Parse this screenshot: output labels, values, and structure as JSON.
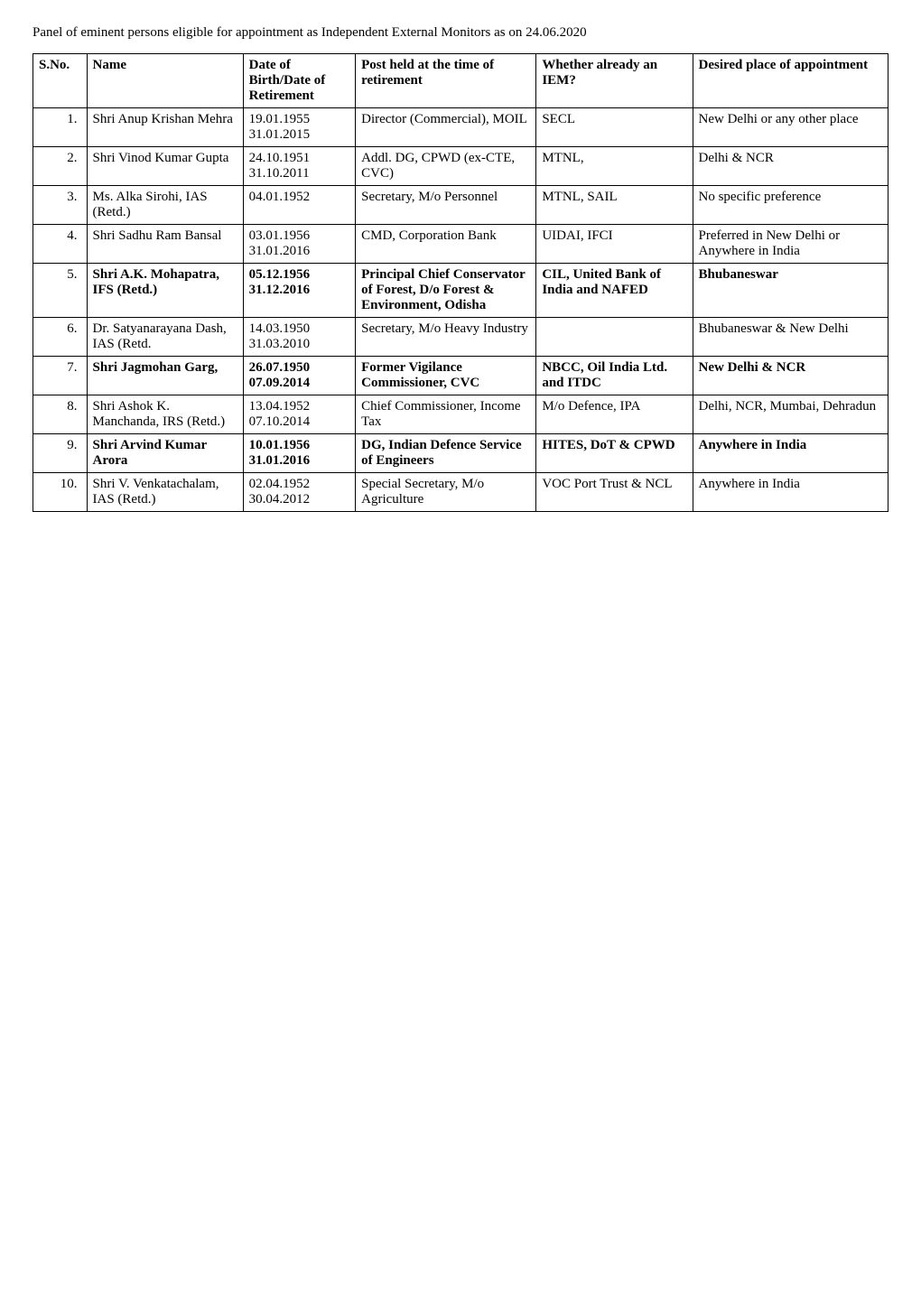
{
  "title": "Panel of eminent persons eligible for appointment as Independent External Monitors as on 24.06.2020",
  "columns": [
    "S.No.",
    "Name",
    "Date of Birth/Date of Retirement",
    "Post held at the time of retirement",
    "Whether already an IEM?",
    "Desired place of appointment"
  ],
  "rows": [
    {
      "sno": "1.",
      "bold": false,
      "name": "Shri Anup Krishan Mehra",
      "dob": "19.01.1955\n31.01.2015",
      "post": "Director (Commercial), MOIL",
      "iem": "SECL",
      "place": "New Delhi or any other place"
    },
    {
      "sno": "2.",
      "bold": false,
      "name": "Shri Vinod Kumar Gupta",
      "dob": "24.10.1951\n31.10.2011",
      "post": "Addl. DG, CPWD (ex-CTE, CVC)",
      "iem": "MTNL,",
      "place": "Delhi & NCR"
    },
    {
      "sno": "3.",
      "bold": false,
      "name": "Ms. Alka Sirohi, IAS (Retd.)",
      "dob": "04.01.1952",
      "post": "Secretary, M/o Personnel",
      "iem": "MTNL, SAIL",
      "place": "No specific preference"
    },
    {
      "sno": "4.",
      "bold": false,
      "name": "Shri Sadhu Ram Bansal",
      "dob": "03.01.1956\n31.01.2016",
      "post": "CMD, Corporation Bank",
      "iem": "UIDAI, IFCI",
      "place": "Preferred in New Delhi or Anywhere in India"
    },
    {
      "sno": "5.",
      "bold": true,
      "name": "Shri A.K. Mohapatra, IFS (Retd.)",
      "dob": "05.12.1956\n31.12.2016",
      "post": "Principal Chief Conservator of Forest, D/o Forest & Environment, Odisha",
      "iem": "CIL, United Bank of India and NAFED",
      "place": "Bhubaneswar"
    },
    {
      "sno": "6.",
      "bold": false,
      "name": "Dr. Satyanarayana Dash, IAS (Retd.",
      "dob": "14.03.1950\n31.03.2010",
      "post": "Secretary, M/o Heavy Industry",
      "iem": "",
      "place": "Bhubaneswar & New Delhi"
    },
    {
      "sno": "7.",
      "bold": true,
      "name": "Shri Jagmohan Garg,",
      "dob": "26.07.1950\n07.09.2014",
      "post": "Former Vigilance Commissioner, CVC",
      "iem": "NBCC, Oil India Ltd. and ITDC",
      "place": "New Delhi & NCR"
    },
    {
      "sno": "8.",
      "bold": false,
      "name": "Shri Ashok K. Manchanda, IRS (Retd.)",
      "dob": "13.04.1952\n07.10.2014",
      "post": "Chief Commissioner, Income Tax",
      "iem": "M/o Defence, IPA",
      "place": "Delhi, NCR, Mumbai, Dehradun"
    },
    {
      "sno": "9.",
      "bold": true,
      "name": "Shri Arvind Kumar Arora",
      "dob": "10.01.1956\n31.01.2016",
      "post": "DG, Indian Defence Service of Engineers",
      "iem": "HITES, DoT & CPWD",
      "place": "Anywhere in India"
    },
    {
      "sno": "10.",
      "bold": false,
      "name": "Shri V. Venkatachalam, IAS (Retd.)",
      "dob": "02.04.1952\n30.04.2012",
      "post": "Special Secretary, M/o Agriculture",
      "iem": "VOC Port Trust & NCL",
      "place": "Anywhere in India"
    }
  ]
}
